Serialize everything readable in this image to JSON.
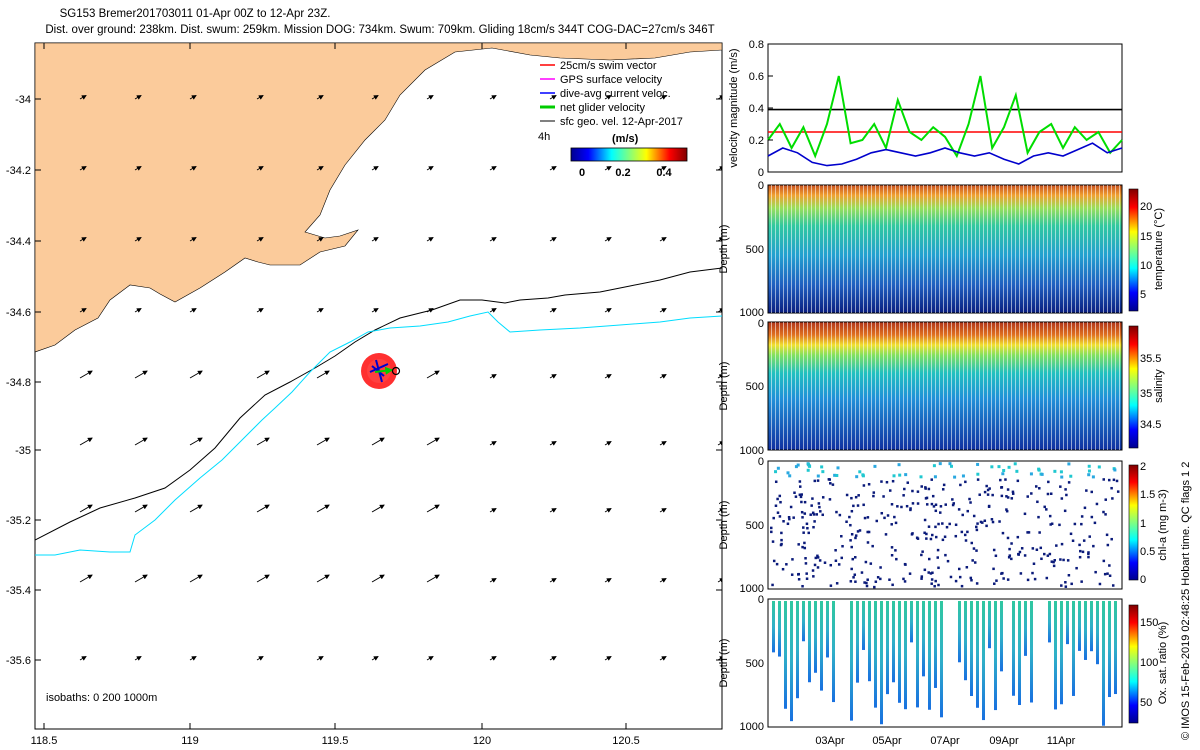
{
  "header": {
    "title": "SG153 Bremer201703011 01-Apr 00Z to 12-Apr 23Z.",
    "stats": "Dist. over ground: 238km. Dist. swum: 259km. Mission DOG: 734km. Swum: 709km. Gliding 18cm/s 344T COG-DAC=27cm/s 346T"
  },
  "map": {
    "lon_ticks": [
      "118.5",
      "119",
      "119.5",
      "120",
      "120.5"
    ],
    "lat_ticks": [
      "-34",
      "-34.2",
      "-34.4",
      "-34.6",
      "-34.8",
      "-35",
      "-35.2",
      "-35.4",
      "-35.6"
    ],
    "legend": [
      {
        "label": "25cm/s swim vector",
        "color": "#ff0000"
      },
      {
        "label": "GPS surface velocity",
        "color": "#ff00ff"
      },
      {
        "label": "dive-avg current veloc.",
        "color": "#0000ff"
      },
      {
        "label": "net glider velocity",
        "color": "#00cc00"
      },
      {
        "label": "sfc geo. vel. 12-Apr-2017",
        "color": "#000000"
      }
    ],
    "colorbar": {
      "time_label": "4h",
      "unit": "(m/s)",
      "ticks": [
        "0",
        "0.2",
        "0.4"
      ]
    },
    "isobaths_label": "isobaths: 0   200  1000m",
    "land_color": "#fbcb9b",
    "isobath_200_color": "#000000",
    "isobath_1000_color": "#00ddff"
  },
  "chart_data": [
    {
      "type": "line",
      "title": "",
      "ylabel": "velocity magnitude (m/s)",
      "ylim": [
        0,
        0.8
      ],
      "yticks": [
        "0",
        "0.2",
        "0.4",
        "0.6",
        "0.8"
      ],
      "x_range_days": [
        0,
        12
      ],
      "series": [
        {
          "name": "sfc geo. vel.",
          "color": "#000000",
          "x": [
            0,
            12
          ],
          "values": [
            0.39,
            0.39
          ]
        },
        {
          "name": "swim vector",
          "color": "#ff0000",
          "x": [
            0,
            12
          ],
          "values": [
            0.25,
            0.25
          ]
        },
        {
          "name": "net glider velocity",
          "color": "#00dd00",
          "x": [
            0,
            0.4,
            0.8,
            1.2,
            1.6,
            2.0,
            2.4,
            2.8,
            3.2,
            3.6,
            4.0,
            4.4,
            4.8,
            5.2,
            5.6,
            6.0,
            6.4,
            6.8,
            7.2,
            7.6,
            8.0,
            8.4,
            8.8,
            9.2,
            9.6,
            10.0,
            10.4,
            10.8,
            11.2,
            11.6,
            12.0
          ],
          "values": [
            0.2,
            0.3,
            0.15,
            0.28,
            0.1,
            0.3,
            0.6,
            0.18,
            0.2,
            0.3,
            0.15,
            0.45,
            0.25,
            0.2,
            0.28,
            0.22,
            0.1,
            0.3,
            0.6,
            0.15,
            0.28,
            0.48,
            0.12,
            0.25,
            0.3,
            0.15,
            0.28,
            0.2,
            0.25,
            0.12,
            0.2
          ]
        },
        {
          "name": "dive-avg current veloc.",
          "color": "#0000cc",
          "x": [
            0,
            0.5,
            1,
            1.5,
            2,
            2.5,
            3,
            3.5,
            4,
            4.5,
            5,
            5.5,
            6,
            6.5,
            7,
            7.5,
            8,
            8.5,
            9,
            9.5,
            10,
            10.5,
            11,
            11.5,
            12
          ],
          "values": [
            0.1,
            0.15,
            0.12,
            0.06,
            0.04,
            0.05,
            0.08,
            0.12,
            0.14,
            0.12,
            0.1,
            0.12,
            0.15,
            0.12,
            0.1,
            0.12,
            0.08,
            0.05,
            0.1,
            0.12,
            0.1,
            0.14,
            0.18,
            0.12,
            0.15
          ]
        }
      ]
    },
    {
      "type": "heatmap",
      "ylabel": "Depth (m)",
      "ylim": [
        1000,
        0
      ],
      "yticks": [
        "0",
        "500",
        "1000"
      ],
      "colorbar_label": "temperature (°C)",
      "colorbar_ticks": [
        "5",
        "10",
        "15",
        "20"
      ],
      "colorbar_range": [
        3,
        23
      ]
    },
    {
      "type": "heatmap",
      "ylabel": "Depth (m)",
      "ylim": [
        1000,
        0
      ],
      "yticks": [
        "0",
        "500",
        "1000"
      ],
      "colorbar_label": "salinity",
      "colorbar_ticks": [
        "34.5",
        "35",
        "35.5"
      ],
      "colorbar_range": [
        34.3,
        35.8
      ]
    },
    {
      "type": "scatter",
      "ylabel": "Depth (m)",
      "ylim": [
        1000,
        0
      ],
      "yticks": [
        "0",
        "500",
        "1000"
      ],
      "colorbar_label": "chl-a (mg m-3)",
      "colorbar_ticks": [
        "0",
        "0.5",
        "1",
        "1.5",
        "2"
      ],
      "colorbar_range": [
        0,
        2
      ]
    },
    {
      "type": "scatter",
      "ylabel": "Depth (m)",
      "ylim": [
        1000,
        0
      ],
      "yticks": [
        "0",
        "500",
        "1000"
      ],
      "colorbar_label": "Ox. sat. ratio (%)",
      "colorbar_ticks": [
        "50",
        "100",
        "150"
      ],
      "colorbar_range": [
        25,
        175
      ],
      "xticks": [
        "03Apr",
        "05Apr",
        "07Apr",
        "09Apr",
        "11Apr"
      ]
    }
  ],
  "footer": {
    "stamp": "© IMOS 15-Feb-2019 02:48:25 Hobart time. QC flags 1  2"
  }
}
